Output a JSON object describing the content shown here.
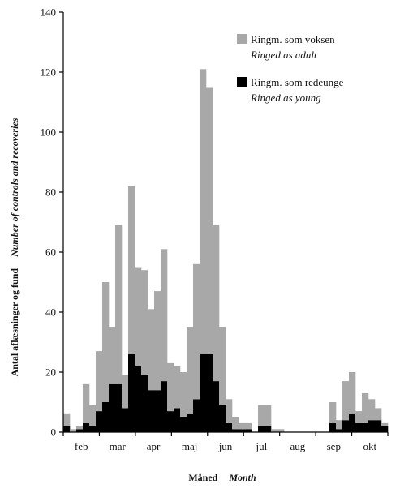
{
  "chart_data": {
    "type": "bar",
    "stacked": true,
    "ylim": [
      0,
      140
    ],
    "yticks": [
      0,
      20,
      40,
      60,
      80,
      100,
      120,
      140
    ],
    "month_labels": [
      "feb",
      "mar",
      "apr",
      "maj",
      "jun",
      "jul",
      "aug",
      "sep",
      "okt"
    ],
    "xlabel": "Måned",
    "xlabel_en": "Month",
    "ylabel": "Antal aflæsninger og fund",
    "ylabel_en": "Number of controls and recoveries",
    "legend_position": "top-right",
    "series": [
      {
        "name": "Ringm. som voksen",
        "name_en": "Ringed as adult",
        "color": "#a8a8a8",
        "values": [
          4,
          1,
          1,
          13,
          7,
          20,
          40,
          19,
          53,
          11,
          56,
          33,
          35,
          27,
          33,
          44,
          16,
          14,
          15,
          29,
          45,
          95,
          89,
          52,
          26,
          8,
          4,
          2,
          2,
          0,
          7,
          7,
          1,
          1,
          0,
          0,
          0,
          0,
          0,
          0,
          0,
          7,
          3,
          13,
          14,
          4,
          10,
          7,
          4,
          1
        ]
      },
      {
        "name": "Ringm. som redeunge",
        "name_en": "Ringed as young",
        "color": "#000000",
        "values": [
          2,
          0,
          1,
          3,
          2,
          7,
          10,
          16,
          16,
          8,
          26,
          22,
          19,
          14,
          14,
          17,
          7,
          8,
          5,
          6,
          11,
          26,
          26,
          17,
          9,
          3,
          1,
          1,
          1,
          0,
          2,
          2,
          0,
          0,
          0,
          0,
          0,
          0,
          0,
          0,
          0,
          3,
          1,
          4,
          6,
          3,
          3,
          4,
          4,
          2
        ]
      }
    ]
  }
}
